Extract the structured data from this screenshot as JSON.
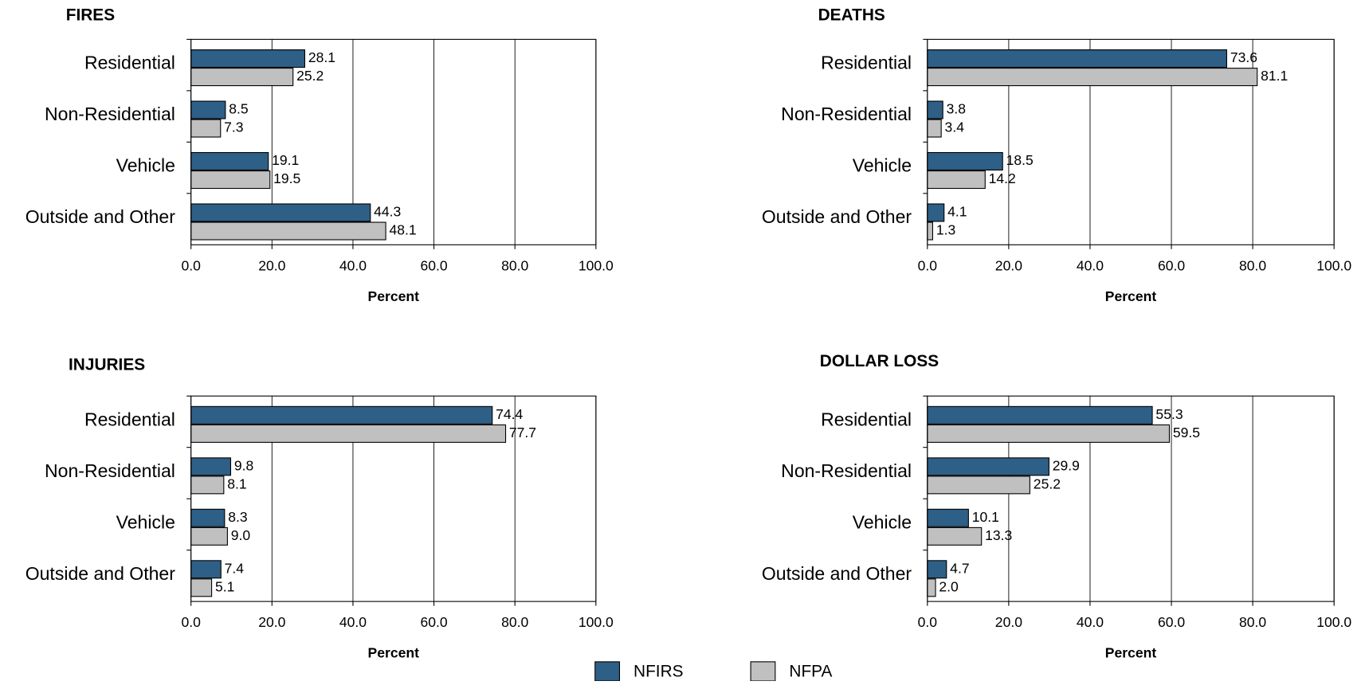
{
  "chart_data": [
    {
      "type": "bar",
      "orientation": "horizontal",
      "title": "FIRES",
      "xlabel": "Percent",
      "categories": [
        "Residential",
        "Non-Residential",
        "Vehicle",
        "Outside and Other"
      ],
      "series": [
        {
          "name": "NFIRS",
          "color": "#2e5f86",
          "values": [
            28.1,
            8.5,
            19.1,
            44.3
          ],
          "value_labels": [
            "28.1",
            "8.5",
            "19.1",
            "44.3"
          ]
        },
        {
          "name": "NFPA",
          "color": "#c0c0c0",
          "values": [
            25.2,
            7.3,
            19.5,
            48.1
          ],
          "value_labels": [
            "25.2",
            "7.3",
            "19.5",
            "48.1"
          ]
        }
      ],
      "xlim": [
        0,
        100
      ],
      "xticks": [
        {
          "value": 0,
          "label": "0.0"
        },
        {
          "value": 20,
          "label": "20.0"
        },
        {
          "value": 40,
          "label": "40.0"
        },
        {
          "value": 60,
          "label": "60.0"
        },
        {
          "value": 80,
          "label": "80.0"
        },
        {
          "value": 100,
          "label": "100.0"
        }
      ],
      "grid": true
    },
    {
      "type": "bar",
      "orientation": "horizontal",
      "title": "DEATHS",
      "xlabel": "Percent",
      "categories": [
        "Residential",
        "Non-Residential",
        "Vehicle",
        "Outside and Other"
      ],
      "series": [
        {
          "name": "NFIRS",
          "color": "#2e5f86",
          "values": [
            73.6,
            3.8,
            18.5,
            4.1
          ],
          "value_labels": [
            "73.6",
            "3.8",
            "18.5",
            "4.1"
          ]
        },
        {
          "name": "NFPA",
          "color": "#c0c0c0",
          "values": [
            81.1,
            3.4,
            14.2,
            1.3
          ],
          "value_labels": [
            "81.1",
            "3.4",
            "14.2",
            "1.3"
          ]
        }
      ],
      "xlim": [
        0,
        100
      ],
      "xticks": [
        {
          "value": 0,
          "label": "0.0"
        },
        {
          "value": 20,
          "label": "20.0"
        },
        {
          "value": 40,
          "label": "40.0"
        },
        {
          "value": 60,
          "label": "60.0"
        },
        {
          "value": 80,
          "label": "80.0"
        },
        {
          "value": 100,
          "label": "100.0"
        }
      ],
      "grid": true
    },
    {
      "type": "bar",
      "orientation": "horizontal",
      "title": "INJURIES",
      "xlabel": "Percent",
      "categories": [
        "Residential",
        "Non-Residential",
        "Vehicle",
        "Outside and Other"
      ],
      "series": [
        {
          "name": "NFIRS",
          "color": "#2e5f86",
          "values": [
            74.4,
            9.8,
            8.3,
            7.4
          ],
          "value_labels": [
            "74.4",
            "9.8",
            "8.3",
            "7.4"
          ]
        },
        {
          "name": "NFPA",
          "color": "#c0c0c0",
          "values": [
            77.7,
            8.1,
            9,
            5.1
          ],
          "value_labels": [
            "77.7",
            "8.1",
            "9.0",
            "5.1"
          ]
        }
      ],
      "xlim": [
        0,
        100
      ],
      "xticks": [
        {
          "value": 0,
          "label": "0.0"
        },
        {
          "value": 20,
          "label": "20.0"
        },
        {
          "value": 40,
          "label": "40.0"
        },
        {
          "value": 60,
          "label": "60.0"
        },
        {
          "value": 80,
          "label": "80.0"
        },
        {
          "value": 100,
          "label": "100.0"
        }
      ],
      "grid": true
    },
    {
      "type": "bar",
      "orientation": "horizontal",
      "title": "DOLLAR LOSS",
      "xlabel": "Percent",
      "categories": [
        "Residential",
        "Non-Residential",
        "Vehicle",
        "Outside and Other"
      ],
      "series": [
        {
          "name": "NFIRS",
          "color": "#2e5f86",
          "values": [
            55.3,
            29.9,
            10.1,
            4.7
          ],
          "value_labels": [
            "55.3",
            "29.9",
            "10.1",
            "4.7"
          ]
        },
        {
          "name": "NFPA",
          "color": "#c0c0c0",
          "values": [
            59.5,
            25.2,
            13.3,
            2
          ],
          "value_labels": [
            "59.5",
            "25.2",
            "13.3",
            "2.0"
          ]
        }
      ],
      "xlim": [
        0,
        100
      ],
      "xticks": [
        {
          "value": 0,
          "label": "0.0"
        },
        {
          "value": 20,
          "label": "20.0"
        },
        {
          "value": 40,
          "label": "40.0"
        },
        {
          "value": 60,
          "label": "60.0"
        },
        {
          "value": 80,
          "label": "80.0"
        },
        {
          "value": 100,
          "label": "100.0"
        }
      ],
      "grid": true
    }
  ]
}
